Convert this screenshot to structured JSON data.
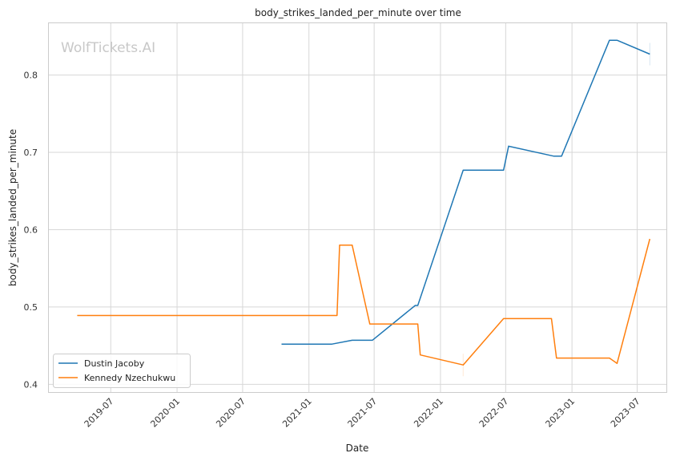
{
  "watermark": "WolfTickets.AI",
  "chart_data": {
    "type": "line",
    "title": "body_strikes_landed_per_minute over time",
    "xlabel": "Date",
    "ylabel": "body_strikes_landed_per_minute",
    "xlim": [
      "2019-01-08",
      "2023-09-20"
    ],
    "ylim": [
      0.39,
      0.868
    ],
    "x_ticks": [
      "2019-07",
      "2020-01",
      "2020-07",
      "2021-01",
      "2021-07",
      "2022-01",
      "2022-07",
      "2023-01",
      "2023-07"
    ],
    "y_ticks": [
      0.4,
      0.5,
      0.6,
      0.7,
      0.8
    ],
    "y_tick_labels": [
      "0.4",
      "0.5",
      "0.6",
      "0.7",
      "0.8"
    ],
    "grid": true,
    "legend_position": "lower-left",
    "series": [
      {
        "name": "Dustin Jacoby",
        "color": "#1f77b4",
        "x": [
          "2020-10-17",
          "2021-03-06",
          "2021-05-01",
          "2021-06-26",
          "2021-10-23",
          "2021-10-30",
          "2022-03-05",
          "2022-06-25",
          "2022-07-09",
          "2022-11-12",
          "2022-12-03",
          "2023-04-15",
          "2023-05-06",
          "2023-08-05"
        ],
        "y": [
          0.452,
          0.452,
          0.457,
          0.457,
          0.502,
          0.502,
          0.677,
          0.677,
          0.708,
          0.695,
          0.695,
          0.845,
          0.845,
          0.827
        ]
      },
      {
        "name": "Kennedy Nzechukwu",
        "color": "#ff7f0e",
        "x": [
          "2019-03-30",
          "2021-03-20",
          "2021-03-27",
          "2021-05-01",
          "2021-06-19",
          "2021-10-30",
          "2021-11-06",
          "2022-03-05",
          "2022-06-25",
          "2022-11-05",
          "2022-11-19",
          "2023-04-15",
          "2023-05-06",
          "2023-08-05"
        ],
        "y": [
          0.489,
          0.489,
          0.58,
          0.58,
          0.478,
          0.478,
          0.438,
          0.425,
          0.485,
          0.485,
          0.434,
          0.434,
          0.427,
          0.588
        ]
      }
    ]
  }
}
